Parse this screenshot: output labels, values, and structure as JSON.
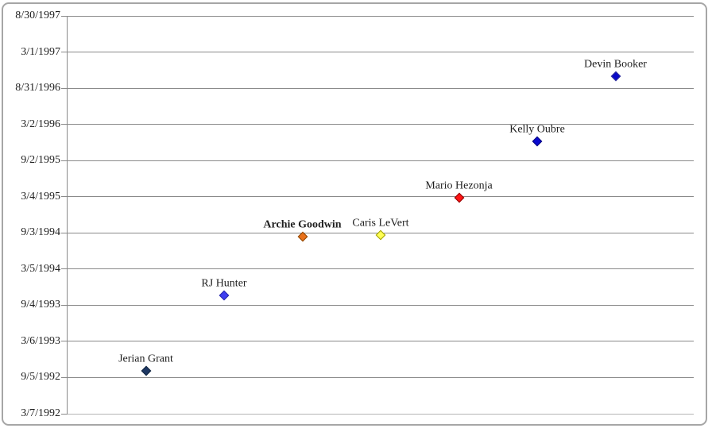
{
  "chart_data": {
    "type": "scatter",
    "title": "",
    "grid": true,
    "legend": false,
    "x_axis": {
      "visible": false,
      "range": [
        0,
        8
      ]
    },
    "y_axis": {
      "kind": "date",
      "range_top": "1997-08-30",
      "range_bottom": "1992-03-07",
      "tick_labels_top_to_bottom": [
        "8/30/1997",
        "3/1/1997",
        "8/31/1996",
        "3/2/1996",
        "9/2/1995",
        "3/4/1995",
        "9/3/1994",
        "3/5/1994",
        "9/4/1993",
        "3/6/1993",
        "9/5/1992",
        "3/7/1992"
      ]
    },
    "points": [
      {
        "label": "Jerian Grant",
        "x": 1,
        "date": "1992-10-09",
        "bold": false,
        "fill": "#1F3864",
        "stroke": "#10243E"
      },
      {
        "label": "RJ Hunter",
        "x": 2,
        "date": "1993-10-24",
        "bold": false,
        "fill": "#3E3EF0",
        "stroke": "#2323A8"
      },
      {
        "label": "Archie Goodwin",
        "x": 3,
        "date": "1994-08-17",
        "bold": true,
        "fill": "#E8701A",
        "stroke": "#8A4500"
      },
      {
        "label": "Caris LeVert",
        "x": 4,
        "date": "1994-08-25",
        "bold": false,
        "fill": "#FFFF54",
        "stroke": "#9C9C00"
      },
      {
        "label": "Mario Hezonja",
        "x": 5,
        "date": "1995-02-25",
        "bold": false,
        "fill": "#FF1414",
        "stroke": "#8B0000"
      },
      {
        "label": "Kelly Oubre",
        "x": 6,
        "date": "1995-12-09",
        "bold": false,
        "fill": "#0909CF",
        "stroke": "#06067A"
      },
      {
        "label": "Devin Booker",
        "x": 7,
        "date": "1996-10-30",
        "bold": false,
        "fill": "#0A0AC8",
        "stroke": "#353599"
      }
    ],
    "colors": {
      "gridline": "#8A8A8A",
      "bottom_line": "#B5B5B5",
      "frame_border": "#A6A6A6",
      "background": "#FFFFFF",
      "text": "#1F1F1F"
    }
  }
}
